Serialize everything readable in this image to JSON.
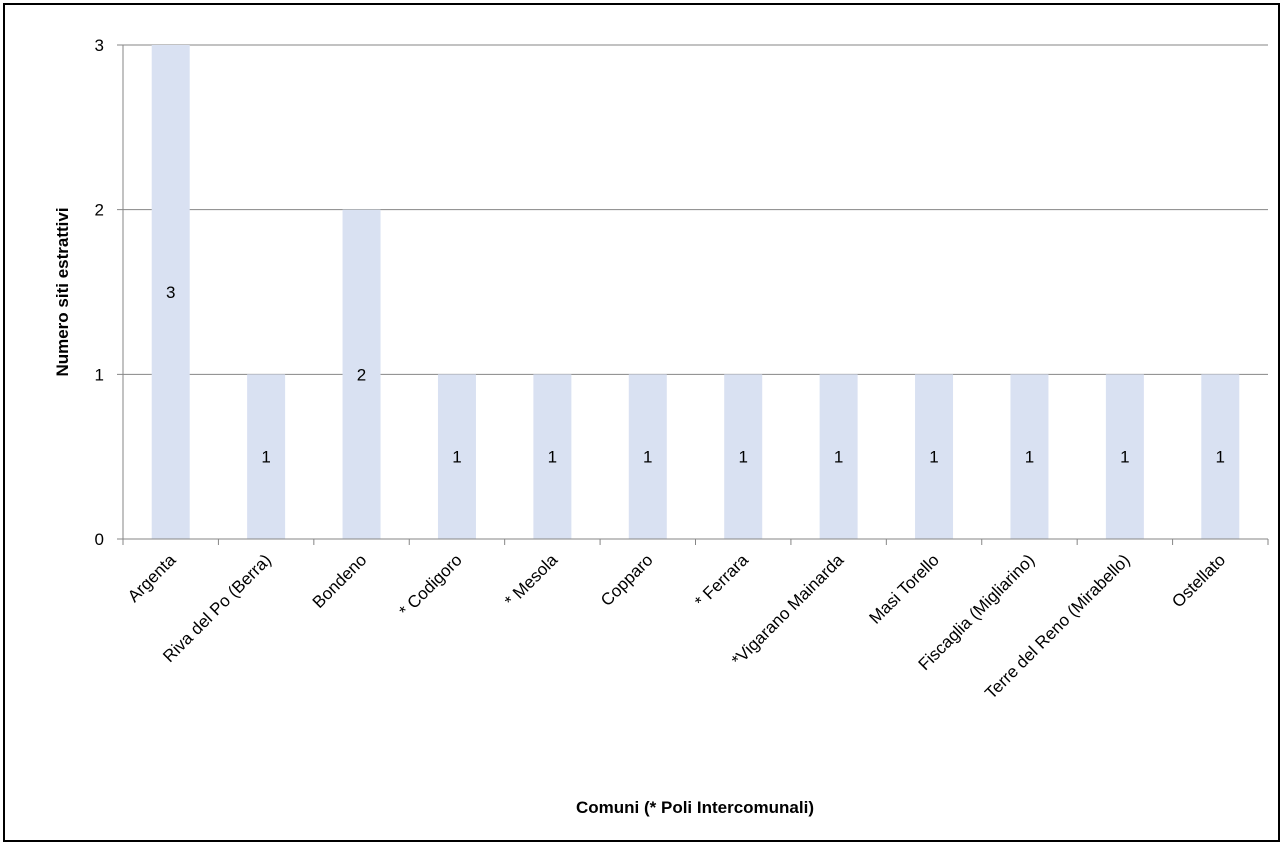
{
  "chart_data": {
    "type": "bar",
    "categories": [
      "Argenta",
      "Riva del Po (Berra)",
      "Bondeno",
      "* Codigoro",
      "* Mesola",
      "Copparo",
      "* Ferrara",
      "*Vigarano Mainarda",
      "Masi Torello",
      "Fiscaglia (Migliarino)",
      "Terre del Reno (Mirabello)",
      "Ostellato"
    ],
    "values": [
      3,
      1,
      2,
      1,
      1,
      1,
      1,
      1,
      1,
      1,
      1,
      1
    ],
    "data_labels": [
      "3",
      "1",
      "2",
      "1",
      "1",
      "1",
      "1",
      "1",
      "1",
      "1",
      "1",
      "1"
    ],
    "y_ticks": [
      "0",
      "1",
      "2",
      "3"
    ],
    "ylim": [
      0,
      3
    ],
    "xlabel": "Comuni (* Poli Intercomunali)",
    "ylabel": "Numero siti estrattivi",
    "grid": true,
    "legend": "none",
    "colors": {
      "bar": "#d9e1f2",
      "gridline": "#868686",
      "axis": "#868686",
      "text": "#000000"
    }
  }
}
